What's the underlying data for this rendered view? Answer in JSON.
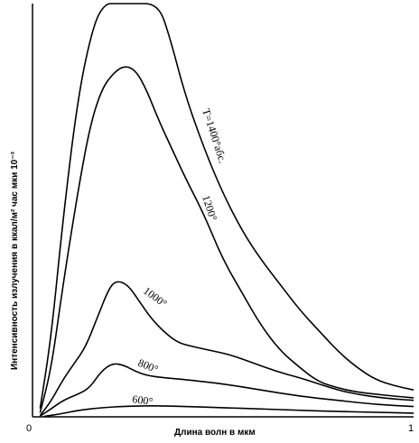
{
  "chart_data": {
    "type": "line",
    "xlabel": "Длина волн в мкм",
    "ylabel": "Интенсивность излучения в ккал/м² час мки 10⁻³",
    "xlim": [
      0,
      1
    ],
    "ylim": [
      0,
      100
    ],
    "x_ticks": [
      "0",
      "1"
    ],
    "series": [
      {
        "name": "T=1400°абс.",
        "points": [
          [
            0.02,
            2
          ],
          [
            0.05,
            20
          ],
          [
            0.08,
            48
          ],
          [
            0.12,
            78
          ],
          [
            0.16,
            95
          ],
          [
            0.19,
            100
          ],
          [
            0.22,
            100
          ],
          [
            0.26,
            100
          ],
          [
            0.33,
            100
          ],
          [
            0.36,
            92
          ],
          [
            0.4,
            78
          ],
          [
            0.45,
            65
          ],
          [
            0.5,
            54
          ],
          [
            0.55,
            45
          ],
          [
            0.6,
            38
          ],
          [
            0.65,
            32
          ],
          [
            0.7,
            26
          ],
          [
            0.75,
            21
          ],
          [
            0.8,
            16
          ],
          [
            0.85,
            12
          ],
          [
            0.9,
            9
          ],
          [
            0.95,
            7.5
          ],
          [
            1.0,
            6.5
          ]
        ]
      },
      {
        "name": "1200°",
        "points": [
          [
            0.02,
            1
          ],
          [
            0.05,
            12
          ],
          [
            0.08,
            32
          ],
          [
            0.12,
            55
          ],
          [
            0.15,
            70
          ],
          [
            0.18,
            79
          ],
          [
            0.21,
            83
          ],
          [
            0.24,
            85
          ],
          [
            0.27,
            84
          ],
          [
            0.3,
            79
          ],
          [
            0.33,
            72
          ],
          [
            0.36,
            66
          ],
          [
            0.4,
            58
          ],
          [
            0.45,
            49
          ],
          [
            0.5,
            38
          ],
          [
            0.55,
            30
          ],
          [
            0.6,
            22
          ],
          [
            0.65,
            16
          ],
          [
            0.7,
            12
          ],
          [
            0.75,
            8.5
          ],
          [
            0.8,
            7
          ],
          [
            0.85,
            6
          ],
          [
            0.9,
            5.5
          ],
          [
            0.95,
            5
          ],
          [
            1.0,
            4.6
          ]
        ]
      },
      {
        "name": "1000°",
        "points": [
          [
            0.02,
            0.3
          ],
          [
            0.05,
            4
          ],
          [
            0.08,
            9
          ],
          [
            0.11,
            13
          ],
          [
            0.14,
            17
          ],
          [
            0.17,
            24
          ],
          [
            0.2,
            31
          ],
          [
            0.22,
            33
          ],
          [
            0.25,
            32
          ],
          [
            0.28,
            28
          ],
          [
            0.31,
            24
          ],
          [
            0.34,
            21
          ],
          [
            0.38,
            18
          ],
          [
            0.42,
            17
          ],
          [
            0.47,
            16
          ],
          [
            0.52,
            15
          ],
          [
            0.58,
            13
          ],
          [
            0.64,
            11
          ],
          [
            0.7,
            9.5
          ],
          [
            0.75,
            8
          ],
          [
            0.8,
            6.5
          ],
          [
            0.85,
            5.5
          ],
          [
            0.9,
            4.8
          ],
          [
            0.95,
            4.3
          ],
          [
            1.0,
            4
          ]
        ]
      },
      {
        "name": "800°",
        "points": [
          [
            0.02,
            0.2
          ],
          [
            0.05,
            2
          ],
          [
            0.08,
            4
          ],
          [
            0.12,
            5.5
          ],
          [
            0.15,
            7
          ],
          [
            0.18,
            11
          ],
          [
            0.21,
            13
          ],
          [
            0.24,
            12.5
          ],
          [
            0.27,
            11
          ],
          [
            0.3,
            10
          ],
          [
            0.34,
            9.5
          ],
          [
            0.4,
            9
          ],
          [
            0.5,
            8
          ],
          [
            0.6,
            6.5
          ],
          [
            0.7,
            5
          ],
          [
            0.8,
            4
          ],
          [
            0.9,
            3
          ],
          [
            1.0,
            2.5
          ]
        ]
      },
      {
        "name": "600°",
        "points": [
          [
            0.03,
            0.1
          ],
          [
            0.08,
            0.8
          ],
          [
            0.12,
            1.6
          ],
          [
            0.18,
            2.2
          ],
          [
            0.25,
            2.6
          ],
          [
            0.32,
            2.7
          ],
          [
            0.4,
            2.5
          ],
          [
            0.5,
            2.2
          ],
          [
            0.6,
            1.9
          ],
          [
            0.7,
            1.6
          ],
          [
            0.8,
            1.3
          ],
          [
            0.9,
            1.1
          ],
          [
            1.0,
            0.9
          ]
        ]
      }
    ]
  }
}
